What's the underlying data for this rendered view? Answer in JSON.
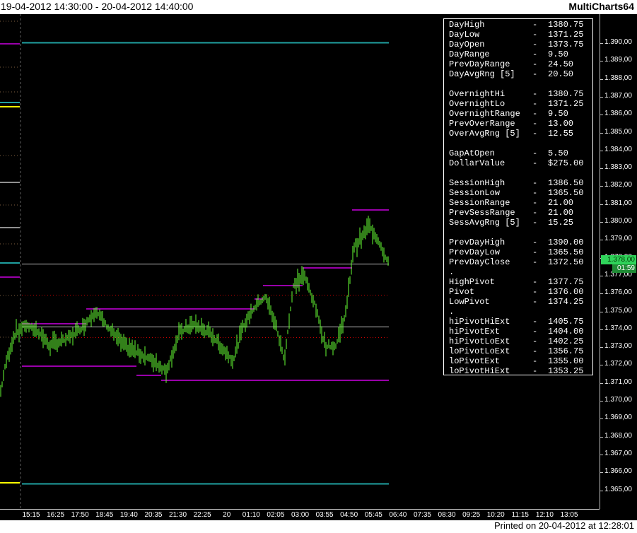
{
  "window": {
    "date_range": "19-04-2012 14:30:00 - 20-04-2012 14:40:00",
    "app_name": "MultiCharts64",
    "footer": "Printed on 20-04-2012 at 12:28:01"
  },
  "price_axis": {
    "labels": [
      "1.390,00",
      "1.389,00",
      "1.388,00",
      "1.387,00",
      "1.386,00",
      "1.385,00",
      "1.384,00",
      "1.383,00",
      "1.382,00",
      "1.381,00",
      "1.380,00",
      "1.379,00",
      "1.378,00",
      "1.377,00",
      "1.376,00",
      "1.375,00",
      "1.374,00",
      "1.373,00",
      "1.372,00",
      "1.371,00",
      "1.370,00",
      "1.369,00",
      "1.368,00",
      "1.367,00",
      "1.366,00",
      "1.365,00"
    ],
    "current_price_label": "1.378,00",
    "current_time_label": "01:59"
  },
  "time_axis": {
    "labels": [
      "15:15",
      "16:25",
      "17:50",
      "18:45",
      "19:40",
      "20:35",
      "21:30",
      "22:25",
      "20",
      "01:10",
      "02:05",
      "03:00",
      "03:55",
      "04:50",
      "05:45",
      "06:40",
      "07:35",
      "08:30",
      "09:25",
      "10:20",
      "11:15",
      "12:10",
      "13:05"
    ]
  },
  "stats": [
    {
      "label": "DayHigh",
      "dash": "-",
      "value": "1380.75"
    },
    {
      "label": "DayLow",
      "dash": "-",
      "value": "1371.25"
    },
    {
      "label": "DayOpen",
      "dash": "-",
      "value": "1373.75"
    },
    {
      "label": "DayRange",
      "dash": "-",
      "value": "9.50"
    },
    {
      "label": "PrevDayRange",
      "dash": "-",
      "value": "24.50"
    },
    {
      "label": "DayAvgRng [5]",
      "dash": "-",
      "value": "20.50"
    },
    {
      "label": "",
      "dash": "",
      "value": ""
    },
    {
      "label": "OvernightHi",
      "dash": "-",
      "value": "1380.75"
    },
    {
      "label": "OvernightLo",
      "dash": "-",
      "value": "1371.25"
    },
    {
      "label": "OvernightRange",
      "dash": "-",
      "value": "9.50"
    },
    {
      "label": "PrevOverRange",
      "dash": "-",
      "value": "13.00"
    },
    {
      "label": "OverAvgRng [5]",
      "dash": "-",
      "value": "12.55"
    },
    {
      "label": "",
      "dash": "",
      "value": ""
    },
    {
      "label": "GapAtOpen",
      "dash": "-",
      "value": "5.50"
    },
    {
      "label": "DollarValue",
      "dash": "-",
      "value": "$275.00"
    },
    {
      "label": "",
      "dash": "",
      "value": ""
    },
    {
      "label": "SessionHigh",
      "dash": "-",
      "value": "1386.50"
    },
    {
      "label": "SessionLow",
      "dash": "-",
      "value": "1365.50"
    },
    {
      "label": "SessionRange",
      "dash": "-",
      "value": "21.00"
    },
    {
      "label": "PrevSessRange",
      "dash": "-",
      "value": "21.00"
    },
    {
      "label": "SessAvgRng [5]",
      "dash": "-",
      "value": "15.25"
    },
    {
      "label": "",
      "dash": "",
      "value": ""
    },
    {
      "label": "PrevDayHigh",
      "dash": "-",
      "value": "1390.00"
    },
    {
      "label": "PrevDayLow",
      "dash": "-",
      "value": "1365.50"
    },
    {
      "label": "PrevDayClose",
      "dash": "-",
      "value": "1372.50"
    },
    {
      "label": ".",
      "dash": "",
      "value": ""
    },
    {
      "label": "HighPivot",
      "dash": "-",
      "value": "1377.75"
    },
    {
      "label": "Pivot",
      "dash": "-",
      "value": "1376.00"
    },
    {
      "label": "LowPivot",
      "dash": "-",
      "value": "1374.25"
    },
    {
      "label": ".",
      "dash": "",
      "value": ""
    },
    {
      "label": "hiPivotHiExt",
      "dash": "-",
      "value": "1405.75"
    },
    {
      "label": "hiPivotExt",
      "dash": "-",
      "value": "1404.00"
    },
    {
      "label": "hiPivotLoExt",
      "dash": "-",
      "value": "1402.25"
    },
    {
      "label": "loPivotLoExt",
      "dash": "-",
      "value": "1356.75"
    },
    {
      "label": "loPivotExt",
      "dash": "-",
      "value": "1355.00"
    },
    {
      "label": "loPivotHiExt",
      "dash": "-",
      "value": "1353.25"
    }
  ],
  "colors": {
    "bars": "#66ff33",
    "magenta_levels": "#9900aa",
    "teal_levels": "#1fa0a0",
    "yellow_marker": "#ffff00",
    "pivot_line": "#c0c0c0",
    "dotted_pivot": "#cc0000"
  }
}
